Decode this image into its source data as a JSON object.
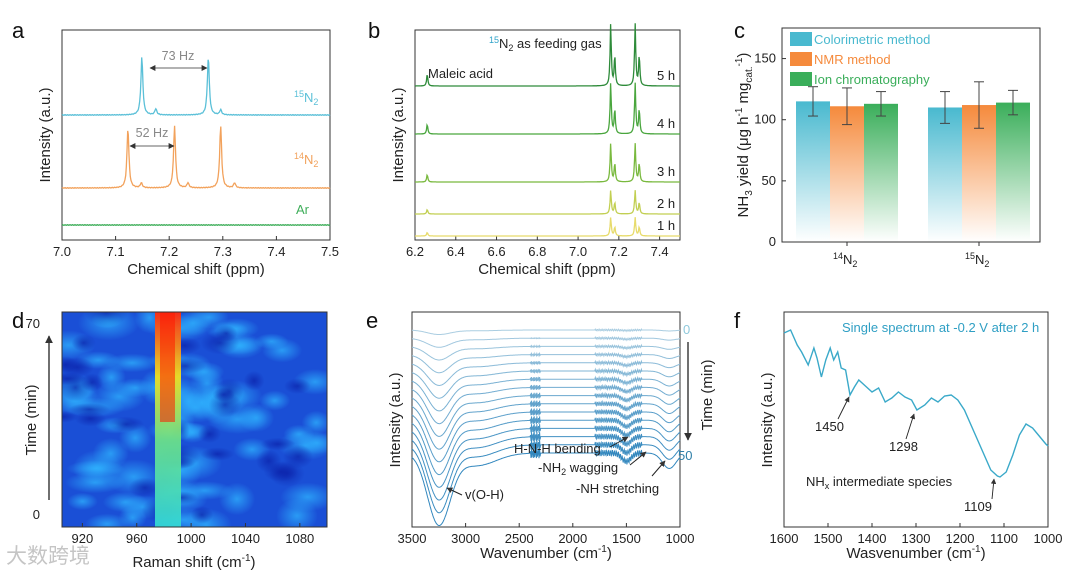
{
  "watermark": "大数跨境",
  "chart_data": [
    {
      "panel": "a",
      "type": "line",
      "xlabel": "Chemical shift (ppm)",
      "ylabel": "Intensity (a.u.)",
      "xlim": [
        7.5,
        7.0
      ],
      "xticks": [
        "7.0",
        "7.1",
        "7.2",
        "7.3",
        "7.4",
        "7.5"
      ],
      "series": [
        {
          "name": "15N2",
          "label_pre": "15",
          "label_post": "N",
          "label_sub": "2",
          "color": "#5bc0d8",
          "peaks": [
            7.149,
            7.273,
            7.175,
            7.296
          ]
        },
        {
          "name": "14N2",
          "label_pre": "14",
          "label_post": "N",
          "label_sub": "2",
          "color": "#f2a25c",
          "peaks": [
            7.123,
            7.21,
            7.296,
            7.148,
            7.235,
            7.322
          ]
        },
        {
          "name": "Ar",
          "label_pre": "",
          "label_post": "Ar",
          "label_sub": "",
          "color": "#3fae5a",
          "peaks": []
        }
      ],
      "annotations": [
        "73 Hz",
        "52 Hz"
      ]
    },
    {
      "panel": "b",
      "type": "line",
      "xlabel": "Chemical shift (ppm)",
      "ylabel": "Intensity (a.u.)",
      "xlim": [
        7.5,
        6.2
      ],
      "xticks": [
        "6.2",
        "6.4",
        "6.6",
        "6.8",
        "7.0",
        "7.2",
        "7.4"
      ],
      "title_pre": "15",
      "title_post": "N",
      "title_sub": "2",
      "title_rest": " as feeding gas",
      "annotation": "Maleic acid",
      "series": [
        {
          "name": "5 h",
          "color": "#2e8b3a"
        },
        {
          "name": "4 h",
          "color": "#4aa63e"
        },
        {
          "name": "3 h",
          "color": "#79b93e"
        },
        {
          "name": "2 h",
          "color": "#c2cf52"
        },
        {
          "name": "1 h",
          "color": "#e7db6b"
        }
      ],
      "peaks": [
        6.26,
        7.16,
        7.18,
        7.28,
        7.3
      ]
    },
    {
      "panel": "c",
      "type": "bar",
      "ylabel_main": "NH",
      "ylabel_sub": "3",
      "ylabel_rest": " yield (μg h",
      "ylabel_sup1": "-1",
      "ylabel_mg": " mg",
      "ylabel_sub2": "cat.",
      "ylabel_sup2": "-1",
      "ylabel_end": ")",
      "ylim": [
        0,
        175
      ],
      "yticks": [
        "0",
        "50",
        "100",
        "150"
      ],
      "categories": [
        {
          "pre": "14",
          "post": "N",
          "sub": "2"
        },
        {
          "pre": "15",
          "post": "N",
          "sub": "2"
        }
      ],
      "legend": "top-left",
      "series": [
        {
          "name": "Colorimetric method",
          "color": "#49b9cf",
          "values": [
            115,
            110
          ],
          "errors": [
            12,
            13
          ]
        },
        {
          "name": "NMR method",
          "color": "#f58a3c",
          "values": [
            111,
            112
          ],
          "errors": [
            15,
            19
          ]
        },
        {
          "name": "Ion chromatography",
          "color": "#3aae5a",
          "values": [
            113,
            114
          ],
          "errors": [
            10,
            10
          ]
        }
      ]
    },
    {
      "panel": "d",
      "type": "heatmap",
      "xlabel": "Raman shift (cm",
      "xlabel_sup": "-1",
      "xlabel_end": ")",
      "ylabel": "Time (min)",
      "xlim": [
        905,
        1100
      ],
      "xticks": [
        "920",
        "960",
        "1000",
        "1040",
        "1080"
      ],
      "yticks": [
        "0",
        "70"
      ],
      "band_center": 983
    },
    {
      "panel": "e",
      "type": "line",
      "xlabel": "Wavenumber (cm",
      "xlabel_sup": "-1",
      "xlabel_end": ")",
      "ylabel": "Intensity (a.u.)",
      "xlim": [
        3500,
        1000
      ],
      "xticks": [
        "3500",
        "3000",
        "2500",
        "2000",
        "1500",
        "1000"
      ],
      "right_label": "Time (min)",
      "time_start": "0",
      "time_end": "50",
      "annotations": {
        "oh": "v(O-H)",
        "bend": "H-N-H bending",
        "wag_pre": "-NH",
        "wag_sub": "2",
        "wag_post": " wagging",
        "stretch": "-NH stretching"
      }
    },
    {
      "panel": "f",
      "type": "line",
      "xlabel": "Wasvenumber (cm",
      "xlabel_sup": "-1",
      "xlabel_end": ")",
      "ylabel": "Intensity (a.u.)",
      "xlim": [
        1600,
        1000
      ],
      "xticks": [
        "1600",
        "1500",
        "1400",
        "1300",
        "1200",
        "1100",
        "1000"
      ],
      "title": "Single spectrum at -0.2 V after 2 h",
      "peaks": [
        "1450",
        "1298",
        "1109"
      ],
      "note_pre": "NH",
      "note_sub": "x",
      "note_post": " intermediate species",
      "color": "#3aa9c9"
    }
  ],
  "panel_labels": [
    "a",
    "b",
    "c",
    "d",
    "e",
    "f"
  ]
}
